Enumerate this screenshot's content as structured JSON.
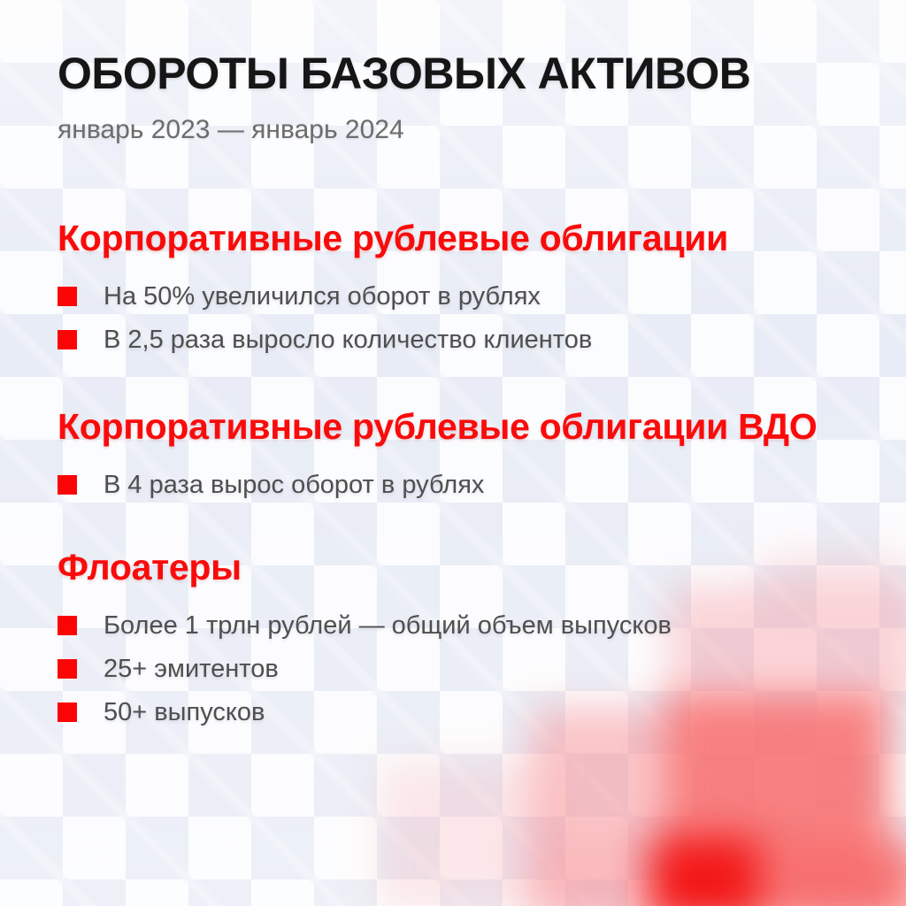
{
  "header": {
    "title": "ОБОРОТЫ БАЗОВЫХ АКТИВОВ",
    "subtitle": "январь 2023 — январь 2024"
  },
  "sections": [
    {
      "heading": "Корпоративные рублевые облигации",
      "bullets": [
        "На 50% увеличился оборот в рублях",
        "В 2,5 раза выросло количество клиентов"
      ]
    },
    {
      "heading": "Корпоративные рублевые облигации ВДО",
      "bullets": [
        "В 4 раза вырос оборот в рублях"
      ]
    },
    {
      "heading": "Флоатеры",
      "bullets": [
        "Более 1 трлн рублей — общий объем выпусков",
        "25+ эмитентов",
        "50+ выпусков"
      ]
    }
  ],
  "colors": {
    "accent_red": "#FA0B0B",
    "bullet_red": "#FA0505",
    "title_black": "#161616",
    "subtitle_gray": "#6D6D6D",
    "body_gray": "#4F4F4F",
    "pattern_blue": "#E7EBF5",
    "pattern_bg": "#FBFCFE",
    "mosaic_salmon": "#F76E6E",
    "mosaic_bright_red": "#F21414",
    "mosaic_pink": "#F7787D"
  }
}
